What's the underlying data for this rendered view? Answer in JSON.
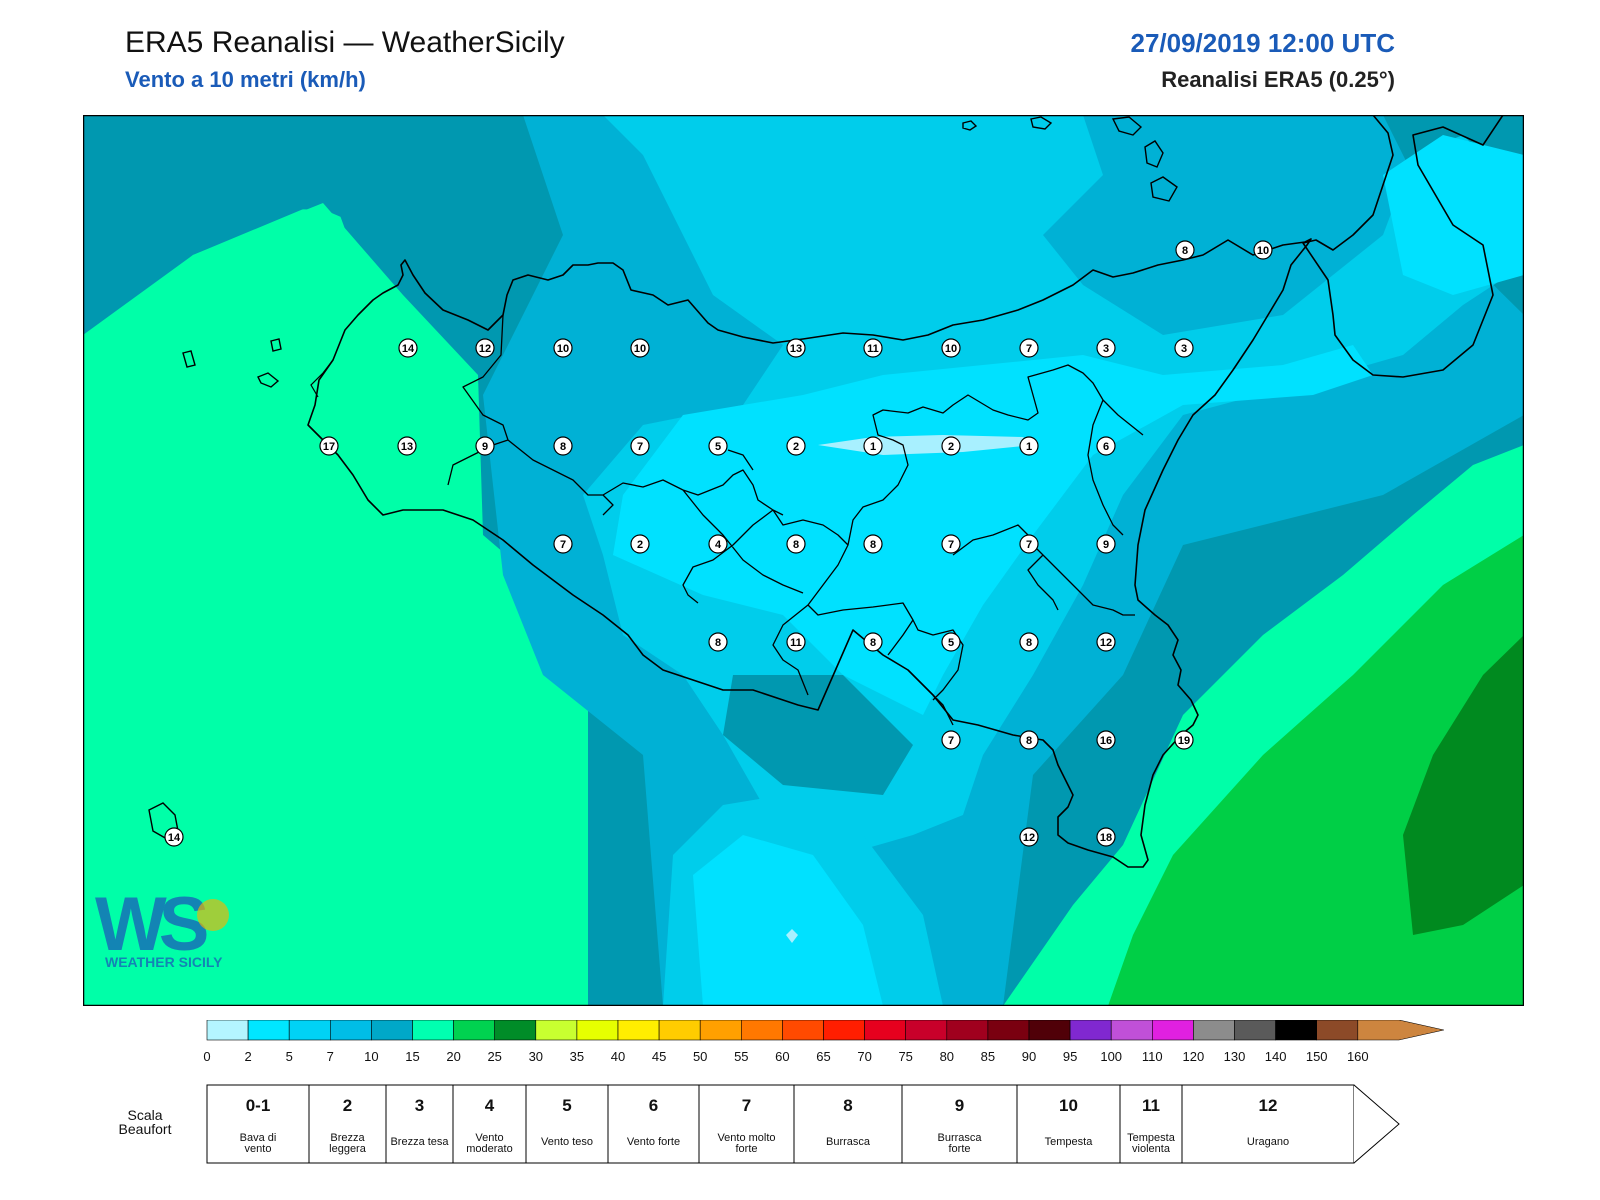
{
  "header": {
    "title": "ERA5 Reanalisi — WeatherSicily",
    "subtitle": "Vento a 10 metri (km/h)",
    "datetime": "27/09/2019 12:00 UTC",
    "model": "Reanalisi ERA5 (0.25°)"
  },
  "logo": {
    "letters": "WS",
    "name": "WEATHER SICILY"
  },
  "colors": {
    "field_lightest": "#a8f0ff",
    "field_light": "#00e1ff",
    "field_mid": "#00cdeb",
    "field_dark": "#00b1d5",
    "field_darkest": "#0098b0",
    "field_aqua": "#00ffa8",
    "field_green": "#00cf46",
    "field_darkgreen": "#008a1f",
    "coastline": "#000000"
  },
  "wind_labels": [
    {
      "value": "8"
    },
    {
      "value": "10"
    },
    {
      "value": "14"
    },
    {
      "value": "12"
    },
    {
      "value": "10"
    },
    {
      "value": "10"
    },
    {
      "value": "13"
    },
    {
      "value": "11"
    },
    {
      "value": "10"
    },
    {
      "value": "7"
    },
    {
      "value": "3"
    },
    {
      "value": "3"
    },
    {
      "value": "17"
    },
    {
      "value": "13"
    },
    {
      "value": "9"
    },
    {
      "value": "8"
    },
    {
      "value": "7"
    },
    {
      "value": "5"
    },
    {
      "value": "2"
    },
    {
      "value": "1"
    },
    {
      "value": "2"
    },
    {
      "value": "1"
    },
    {
      "value": "6"
    },
    {
      "value": "7"
    },
    {
      "value": "2"
    },
    {
      "value": "4"
    },
    {
      "value": "8"
    },
    {
      "value": "8"
    },
    {
      "value": "7"
    },
    {
      "value": "7"
    },
    {
      "value": "9"
    },
    {
      "value": "8"
    },
    {
      "value": "11"
    },
    {
      "value": "8"
    },
    {
      "value": "5"
    },
    {
      "value": "8"
    },
    {
      "value": "12"
    },
    {
      "value": "7"
    },
    {
      "value": "8"
    },
    {
      "value": "16"
    },
    {
      "value": "19"
    },
    {
      "value": "14"
    },
    {
      "value": "12"
    },
    {
      "value": "18"
    }
  ],
  "colorbar": {
    "ticks": [
      "0",
      "2",
      "5",
      "7",
      "10",
      "15",
      "20",
      "25",
      "30",
      "35",
      "40",
      "45",
      "50",
      "55",
      "60",
      "65",
      "70",
      "75",
      "80",
      "85",
      "90",
      "95",
      "100",
      "110",
      "120",
      "130",
      "140",
      "150",
      "160"
    ],
    "colors": [
      "#b4f5ff",
      "#00e6ff",
      "#00d2f5",
      "#00bde6",
      "#00a8c8",
      "#00ffb0",
      "#00d250",
      "#008c28",
      "#c8ff30",
      "#e6ff00",
      "#ffee00",
      "#ffcc00",
      "#ffa000",
      "#ff7800",
      "#ff4a00",
      "#ff1e00",
      "#e6001e",
      "#c8002a",
      "#a0001e",
      "#7a0010",
      "#500008",
      "#8028d0",
      "#c050d8",
      "#e020e0",
      "#8c8c8c",
      "#5a5a5a",
      "#000000",
      "#8c4a28",
      "#cd853f"
    ],
    "arrow_color": "#cd853f"
  },
  "beaufort": {
    "label": "Scala\nBeaufort",
    "classes": [
      {
        "num": "0-1",
        "desc": "Bava di vento"
      },
      {
        "num": "2",
        "desc": "Brezza leggera"
      },
      {
        "num": "3",
        "desc": "Brezza tesa"
      },
      {
        "num": "4",
        "desc": "Vento moderato"
      },
      {
        "num": "5",
        "desc": "Vento teso"
      },
      {
        "num": "6",
        "desc": "Vento forte"
      },
      {
        "num": "7",
        "desc": "Vento molto forte"
      },
      {
        "num": "8",
        "desc": "Burrasca"
      },
      {
        "num": "9",
        "desc": "Burrasca forte"
      },
      {
        "num": "10",
        "desc": "Tempesta"
      },
      {
        "num": "11",
        "desc": "Tempesta violenta"
      },
      {
        "num": "12",
        "desc": "Uragano"
      }
    ]
  }
}
